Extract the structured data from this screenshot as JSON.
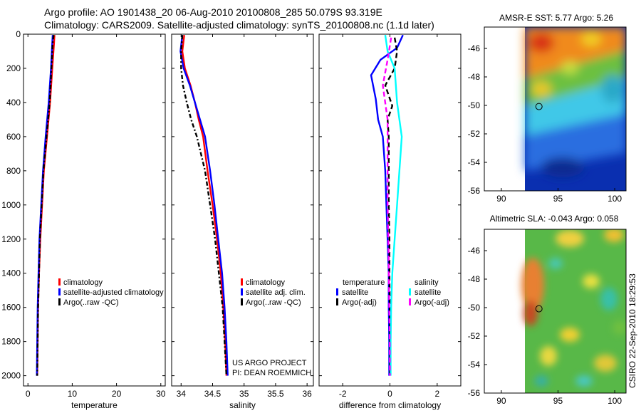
{
  "header": {
    "line1": "Argo profile: AO 1901438_20 06-Aug-2010 20100808_285 50.079S 93.319E",
    "line2": "Climatology: CARS2009. Satellite-adjusted climatology: synTS_20100808.nc (1.1d later)"
  },
  "colors": {
    "climatology": "#ff0000",
    "satellite": "#0000ff",
    "argo": "#000000",
    "salinity_satellite": "#00ffff",
    "salinity_argo": "#ff00ff"
  },
  "chart_data": [
    {
      "type": "line",
      "id": "temperature",
      "xlabel": "temperature",
      "ylabel": "",
      "xlim": [
        -1,
        31
      ],
      "ylim": [
        0,
        2060
      ],
      "yreversed": true,
      "xticks": [
        "0",
        "10",
        "20",
        "30"
      ],
      "xtick_values": [
        0,
        10,
        20,
        30
      ],
      "yticks": [
        "0",
        "200",
        "400",
        "600",
        "800",
        "1000",
        "1200",
        "1400",
        "1600",
        "1800",
        "2000"
      ],
      "ytick_values": [
        0,
        200,
        400,
        600,
        800,
        1000,
        1200,
        1400,
        1600,
        1800,
        2000
      ],
      "legend": [
        "climatology",
        "satellite-adjusted climatology",
        "Argo(..raw -QC)"
      ],
      "series": [
        {
          "name": "climatology",
          "color": "#ff0000",
          "dash": "",
          "points": [
            [
              6.0,
              5
            ],
            [
              5.9,
              50
            ],
            [
              5.5,
              200
            ],
            [
              5.0,
              400
            ],
            [
              4.3,
              600
            ],
            [
              3.6,
              800
            ],
            [
              3.2,
              1000
            ],
            [
              2.8,
              1200
            ],
            [
              2.5,
              1400
            ],
            [
              2.3,
              1600
            ],
            [
              2.2,
              1800
            ],
            [
              2.1,
              2000
            ]
          ]
        },
        {
          "name": "satellite-adjusted climatology",
          "color": "#0000ff",
          "dash": "",
          "points": [
            [
              5.6,
              5
            ],
            [
              5.5,
              50
            ],
            [
              5.2,
              200
            ],
            [
              4.7,
              400
            ],
            [
              4.0,
              600
            ],
            [
              3.4,
              800
            ],
            [
              3.0,
              1000
            ],
            [
              2.6,
              1200
            ],
            [
              2.4,
              1400
            ],
            [
              2.2,
              1600
            ],
            [
              2.1,
              1800
            ],
            [
              2.0,
              2000
            ]
          ]
        },
        {
          "name": "Argo(..raw -QC)",
          "color": "#000000",
          "dash": "6,3,2,3",
          "points": [
            [
              5.8,
              5
            ],
            [
              5.6,
              50
            ],
            [
              5.3,
              200
            ],
            [
              4.9,
              400
            ],
            [
              4.2,
              600
            ],
            [
              3.5,
              800
            ],
            [
              3.1,
              1000
            ],
            [
              2.7,
              1200
            ],
            [
              2.5,
              1400
            ],
            [
              2.3,
              1600
            ],
            [
              2.2,
              1800
            ],
            [
              2.1,
              2000
            ]
          ]
        }
      ]
    },
    {
      "type": "line",
      "id": "salinity",
      "xlabel": "salinity",
      "xlim": [
        33.85,
        36.1
      ],
      "ylim": [
        0,
        2060
      ],
      "yreversed": true,
      "xticks": [
        "34",
        "34.5",
        "35",
        "35.5",
        "36"
      ],
      "xtick_values": [
        34,
        34.5,
        35,
        35.5,
        36
      ],
      "legend": [
        "climatology",
        "satellite adj. clim.",
        "Argo(..raw -QC)"
      ],
      "annotations": [
        "US ARGO PROJECT",
        "PI: DEAN ROEMMICH"
      ],
      "series": [
        {
          "name": "climatology",
          "color": "#ff0000",
          "dash": "",
          "points": [
            [
              34.05,
              5
            ],
            [
              34.02,
              100
            ],
            [
              34.06,
              200
            ],
            [
              34.15,
              300
            ],
            [
              34.22,
              400
            ],
            [
              34.28,
              500
            ],
            [
              34.35,
              600
            ],
            [
              34.42,
              800
            ],
            [
              34.5,
              1000
            ],
            [
              34.57,
              1200
            ],
            [
              34.63,
              1400
            ],
            [
              34.67,
              1600
            ],
            [
              34.7,
              1800
            ],
            [
              34.72,
              2000
            ]
          ]
        },
        {
          "name": "satellite adj. clim.",
          "color": "#0000ff",
          "dash": "",
          "points": [
            [
              34.02,
              5
            ],
            [
              33.99,
              100
            ],
            [
              34.04,
              200
            ],
            [
              34.14,
              300
            ],
            [
              34.22,
              400
            ],
            [
              34.3,
              500
            ],
            [
              34.38,
              600
            ],
            [
              34.46,
              800
            ],
            [
              34.53,
              1000
            ],
            [
              34.59,
              1200
            ],
            [
              34.65,
              1400
            ],
            [
              34.69,
              1600
            ],
            [
              34.72,
              1800
            ],
            [
              34.74,
              2000
            ]
          ]
        },
        {
          "name": "Argo(..raw -QC)",
          "color": "#000000",
          "dash": "6,3,2,3",
          "points": [
            [
              34.02,
              5
            ],
            [
              34.0,
              100
            ],
            [
              34.0,
              200
            ],
            [
              34.03,
              300
            ],
            [
              34.09,
              400
            ],
            [
              34.16,
              500
            ],
            [
              34.25,
              600
            ],
            [
              34.38,
              800
            ],
            [
              34.46,
              1000
            ],
            [
              34.54,
              1200
            ],
            [
              34.6,
              1400
            ],
            [
              34.66,
              1600
            ],
            [
              34.69,
              1800
            ],
            [
              34.72,
              2000
            ]
          ]
        }
      ]
    },
    {
      "type": "line",
      "id": "difference",
      "xlabel": "difference from climatology",
      "xlim": [
        -3,
        3
      ],
      "ylim": [
        0,
        2060
      ],
      "yreversed": true,
      "xticks": [
        "-2",
        "0",
        "2"
      ],
      "xtick_values": [
        -2,
        0,
        2
      ],
      "legend_titles": [
        "temperature",
        "salinity"
      ],
      "legend": [
        "satellite",
        "Argo(-adj)",
        "satellite",
        "Argo(-adj)"
      ],
      "series": [
        {
          "name": "temperature satellite",
          "color": "#0000ff",
          "dash": "",
          "points": [
            [
              0.55,
              5
            ],
            [
              0.3,
              80
            ],
            [
              -0.4,
              150
            ],
            [
              -0.8,
              240
            ],
            [
              -0.6,
              380
            ],
            [
              -0.5,
              500
            ],
            [
              -0.3,
              600
            ],
            [
              -0.2,
              800
            ],
            [
              -0.15,
              1000
            ],
            [
              -0.1,
              1200
            ],
            [
              -0.05,
              1400
            ],
            [
              -0.05,
              1600
            ],
            [
              -0.03,
              1800
            ],
            [
              -0.03,
              2000
            ]
          ]
        },
        {
          "name": "temperature Argo(-adj)",
          "color": "#000000",
          "dash": "7,4",
          "points": [
            [
              0.2,
              20
            ],
            [
              0.3,
              100
            ],
            [
              0.2,
              200
            ],
            [
              -0.2,
              300
            ],
            [
              0.1,
              420
            ],
            [
              -0.1,
              500
            ],
            [
              -0.05,
              600
            ],
            [
              -0.05,
              800
            ],
            [
              -0.05,
              1000
            ],
            [
              -0.02,
              1200
            ],
            [
              -0.02,
              1400
            ],
            [
              -0.01,
              1600
            ],
            [
              0,
              1800
            ],
            [
              0,
              2000
            ]
          ]
        },
        {
          "name": "salinity satellite",
          "color": "#00ffff",
          "dash": "",
          "points": [
            [
              -0.2,
              5
            ],
            [
              -0.1,
              100
            ],
            [
              0.2,
              200
            ],
            [
              0.3,
              400
            ],
            [
              0.5,
              600
            ],
            [
              0.4,
              800
            ],
            [
              0.3,
              1000
            ],
            [
              0.2,
              1200
            ],
            [
              0.1,
              1400
            ],
            [
              0.05,
              1600
            ],
            [
              0.03,
              1800
            ],
            [
              0.03,
              2000
            ]
          ]
        },
        {
          "name": "salinity Argo(-adj)",
          "color": "#ff00ff",
          "dash": "7,4",
          "points": [
            [
              0.05,
              20
            ],
            [
              -0.1,
              150
            ],
            [
              -0.3,
              300
            ],
            [
              -0.1,
              500
            ],
            [
              -0.1,
              700
            ],
            [
              -0.1,
              1000
            ],
            [
              -0.05,
              1300
            ],
            [
              -0.03,
              1600
            ],
            [
              -0.01,
              1800
            ],
            [
              0,
              2000
            ]
          ]
        }
      ]
    },
    {
      "type": "heatmap",
      "id": "sst-map",
      "title": "AMSR-E SST: 5.77 Argo: 5.26",
      "xlim": [
        88.5,
        101
      ],
      "ylim": [
        -56,
        -44.5
      ],
      "xticks": [
        "90",
        "95",
        "100"
      ],
      "xtick_values": [
        90,
        95,
        100
      ],
      "yticks": [
        "-46",
        "-48",
        "-50",
        "-52",
        "-54",
        "-56"
      ],
      "ytick_values": [
        -46,
        -48,
        -50,
        -52,
        -54,
        -56
      ],
      "data_xlim": [
        90,
        101
      ],
      "argo_position": [
        93.319,
        -50.079
      ]
    },
    {
      "type": "heatmap",
      "id": "sla-map",
      "title": "Altimetric SLA: -0.043 Argo: 0.058",
      "xlim": [
        88.5,
        101
      ],
      "ylim": [
        -56,
        -44.5
      ],
      "xticks": [
        "90",
        "95",
        "100"
      ],
      "xtick_values": [
        90,
        95,
        100
      ],
      "yticks": [
        "-46",
        "-48",
        "-50",
        "-52",
        "-54",
        "-56"
      ],
      "ytick_values": [
        -46,
        -48,
        -50,
        -52,
        -54,
        -56
      ],
      "data_xlim": [
        90,
        101
      ],
      "argo_position": [
        93.319,
        -50.079
      ]
    }
  ],
  "footer": {
    "stamp": "CSIRO 22-Sep-2010 18:29:53"
  }
}
